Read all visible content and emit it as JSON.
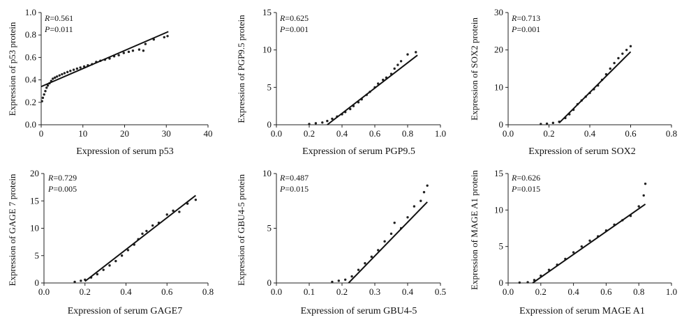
{
  "chart_data": [
    {
      "type": "scatter",
      "xlabel": "Expression of serum p53",
      "ylabel": "Expression of p53 protein",
      "r_text": "=0.561",
      "p_text": "=0.011",
      "xlim": [
        0,
        40
      ],
      "ylim": [
        0,
        1.0
      ],
      "xticks": [
        "0",
        "10",
        "20",
        "30",
        "40"
      ],
      "yticks": [
        "0.0",
        "0.2",
        "0.4",
        "0.6",
        "0.8",
        "1.0"
      ],
      "fit": [
        [
          0,
          0.34
        ],
        [
          30.5,
          0.83
        ]
      ],
      "points": [
        [
          0.2,
          0.21
        ],
        [
          0.4,
          0.24
        ],
        [
          0.7,
          0.27
        ],
        [
          1,
          0.3
        ],
        [
          1.3,
          0.33
        ],
        [
          1.6,
          0.35
        ],
        [
          2,
          0.37
        ],
        [
          2.4,
          0.39
        ],
        [
          2.8,
          0.41
        ],
        [
          3.3,
          0.42
        ],
        [
          3.8,
          0.43
        ],
        [
          4.4,
          0.44
        ],
        [
          5,
          0.45
        ],
        [
          5.6,
          0.46
        ],
        [
          6.3,
          0.47
        ],
        [
          7,
          0.48
        ],
        [
          7.8,
          0.49
        ],
        [
          8.6,
          0.5
        ],
        [
          9.4,
          0.51
        ],
        [
          10.3,
          0.52
        ],
        [
          11.2,
          0.53
        ],
        [
          12.2,
          0.54
        ],
        [
          13.2,
          0.56
        ],
        [
          14.2,
          0.57
        ],
        [
          15.3,
          0.58
        ],
        [
          16.4,
          0.59
        ],
        [
          17.5,
          0.61
        ],
        [
          18.6,
          0.62
        ],
        [
          19.8,
          0.64
        ],
        [
          21,
          0.65
        ],
        [
          22,
          0.66
        ],
        [
          23.5,
          0.67
        ],
        [
          24.5,
          0.66
        ],
        [
          25,
          0.72
        ],
        [
          27,
          0.76
        ],
        [
          29.5,
          0.78
        ],
        [
          30.3,
          0.79
        ]
      ]
    },
    {
      "type": "scatter",
      "xlabel": "Expression of serum PGP9.5",
      "ylabel": "Expression of PGP9.5 protein",
      "r_text": "=0.625",
      "p_text": "=0.001",
      "xlim": [
        0,
        1.0
      ],
      "ylim": [
        0,
        15
      ],
      "xticks": [
        "0.0",
        "0.2",
        "0.4",
        "0.6",
        "0.8",
        "1.0"
      ],
      "yticks": [
        "0",
        "5",
        "10",
        "15"
      ],
      "fit": [
        [
          0.31,
          0
        ],
        [
          0.86,
          9.3
        ]
      ],
      "points": [
        [
          0.2,
          0.1
        ],
        [
          0.24,
          0.2
        ],
        [
          0.28,
          0.3
        ],
        [
          0.31,
          0.5
        ],
        [
          0.34,
          0.8
        ],
        [
          0.37,
          1.1
        ],
        [
          0.4,
          1.4
        ],
        [
          0.42,
          1.7
        ],
        [
          0.45,
          2.1
        ],
        [
          0.47,
          2.5
        ],
        [
          0.5,
          3
        ],
        [
          0.52,
          3.4
        ],
        [
          0.55,
          4
        ],
        [
          0.57,
          4.4
        ],
        [
          0.6,
          5
        ],
        [
          0.62,
          5.5
        ],
        [
          0.65,
          6
        ],
        [
          0.67,
          6.3
        ],
        [
          0.7,
          6.8
        ],
        [
          0.72,
          7.5
        ],
        [
          0.74,
          8
        ],
        [
          0.76,
          8.5
        ],
        [
          0.8,
          9.4
        ],
        [
          0.85,
          9.7
        ]
      ]
    },
    {
      "type": "scatter",
      "xlabel": "Expression of serum SOX2",
      "ylabel": "Expression of SOX2 protein",
      "r_text": "=0.713",
      "p_text": "=0.001",
      "xlim": [
        0,
        0.8
      ],
      "ylim": [
        0,
        30
      ],
      "xticks": [
        "0.0",
        "0.2",
        "0.4",
        "0.6",
        "0.8"
      ],
      "yticks": [
        "0",
        "10",
        "20",
        "30"
      ],
      "fit": [
        [
          0.25,
          0.5
        ],
        [
          0.6,
          19.5
        ]
      ],
      "points": [
        [
          0.16,
          0.2
        ],
        [
          0.19,
          0.3
        ],
        [
          0.22,
          0.5
        ],
        [
          0.25,
          0.8
        ],
        [
          0.28,
          1.8
        ],
        [
          0.3,
          2.8
        ],
        [
          0.32,
          4
        ],
        [
          0.34,
          5.5
        ],
        [
          0.36,
          6.5
        ],
        [
          0.38,
          7.5
        ],
        [
          0.4,
          8.5
        ],
        [
          0.42,
          9.5
        ],
        [
          0.44,
          10.5
        ],
        [
          0.46,
          12
        ],
        [
          0.48,
          13.5
        ],
        [
          0.5,
          15
        ],
        [
          0.52,
          16.5
        ],
        [
          0.54,
          17.8
        ],
        [
          0.56,
          19
        ],
        [
          0.58,
          20
        ],
        [
          0.6,
          21
        ]
      ]
    },
    {
      "type": "scatter",
      "xlabel": "Expression of serum GAGE7",
      "ylabel": "Expression  of GAGE 7 protein",
      "r_text": "=0.729",
      "p_text": "=0.005",
      "xlim": [
        0,
        0.8
      ],
      "ylim": [
        0,
        20
      ],
      "xticks": [
        "0.0",
        "0.2",
        "0.4",
        "0.6",
        "0.8"
      ],
      "yticks": [
        "0",
        "5",
        "10",
        "15",
        "20"
      ],
      "fit": [
        [
          0.2,
          0.3
        ],
        [
          0.74,
          16
        ]
      ],
      "points": [
        [
          0.15,
          0.2
        ],
        [
          0.18,
          0.4
        ],
        [
          0.2,
          0.6
        ],
        [
          0.23,
          1
        ],
        [
          0.26,
          1.6
        ],
        [
          0.29,
          2.4
        ],
        [
          0.32,
          3.2
        ],
        [
          0.35,
          4
        ],
        [
          0.38,
          5
        ],
        [
          0.41,
          6
        ],
        [
          0.44,
          7
        ],
        [
          0.46,
          8
        ],
        [
          0.48,
          9
        ],
        [
          0.5,
          9.5
        ],
        [
          0.53,
          10.5
        ],
        [
          0.56,
          11
        ],
        [
          0.6,
          12.5
        ],
        [
          0.63,
          13.2
        ],
        [
          0.66,
          13
        ],
        [
          0.7,
          14.5
        ],
        [
          0.74,
          15.2
        ]
      ]
    },
    {
      "type": "scatter",
      "xlabel": "Expression of serum GBU4-5",
      "ylabel": "Expression of GBU4-5 protein",
      "r_text": "=0.487",
      "p_text": "=0.015",
      "xlim": [
        0,
        0.5
      ],
      "ylim": [
        0,
        10
      ],
      "xticks": [
        "0.0",
        "0.1",
        "0.2",
        "0.3",
        "0.4",
        "0.5"
      ],
      "yticks": [
        "0",
        "5",
        "10"
      ],
      "fit": [
        [
          0.22,
          0
        ],
        [
          0.46,
          7.4
        ]
      ],
      "points": [
        [
          0.17,
          0.1
        ],
        [
          0.19,
          0.2
        ],
        [
          0.21,
          0.3
        ],
        [
          0.23,
          0.6
        ],
        [
          0.25,
          1.2
        ],
        [
          0.27,
          1.8
        ],
        [
          0.29,
          2.4
        ],
        [
          0.31,
          3
        ],
        [
          0.33,
          3.8
        ],
        [
          0.35,
          4.5
        ],
        [
          0.36,
          5.5
        ],
        [
          0.38,
          5
        ],
        [
          0.4,
          6
        ],
        [
          0.42,
          7
        ],
        [
          0.44,
          7.5
        ],
        [
          0.45,
          8.3
        ],
        [
          0.46,
          8.9
        ]
      ]
    },
    {
      "type": "scatter",
      "xlabel": "Expression of serum MAGE A1",
      "ylabel": "Expression of MAGE A1 protein",
      "r_text": "=0.626",
      "p_text": "=0.015",
      "xlim": [
        0,
        1.0
      ],
      "ylim": [
        0,
        15
      ],
      "xticks": [
        "0.0",
        "0.2",
        "0.4",
        "0.6",
        "0.8",
        "1.0"
      ],
      "yticks": [
        "0",
        "5",
        "10",
        "15"
      ],
      "fit": [
        [
          0.15,
          0
        ],
        [
          0.84,
          10.8
        ]
      ],
      "points": [
        [
          0.07,
          0.05
        ],
        [
          0.12,
          0.1
        ],
        [
          0.16,
          0.4
        ],
        [
          0.2,
          1
        ],
        [
          0.25,
          1.8
        ],
        [
          0.3,
          2.5
        ],
        [
          0.35,
          3.3
        ],
        [
          0.4,
          4.2
        ],
        [
          0.45,
          5
        ],
        [
          0.5,
          5.8
        ],
        [
          0.55,
          6.4
        ],
        [
          0.6,
          7.2
        ],
        [
          0.65,
          8
        ],
        [
          0.7,
          8.6
        ],
        [
          0.75,
          9.2
        ],
        [
          0.8,
          10.5
        ],
        [
          0.83,
          12
        ],
        [
          0.84,
          13.6
        ]
      ]
    }
  ]
}
